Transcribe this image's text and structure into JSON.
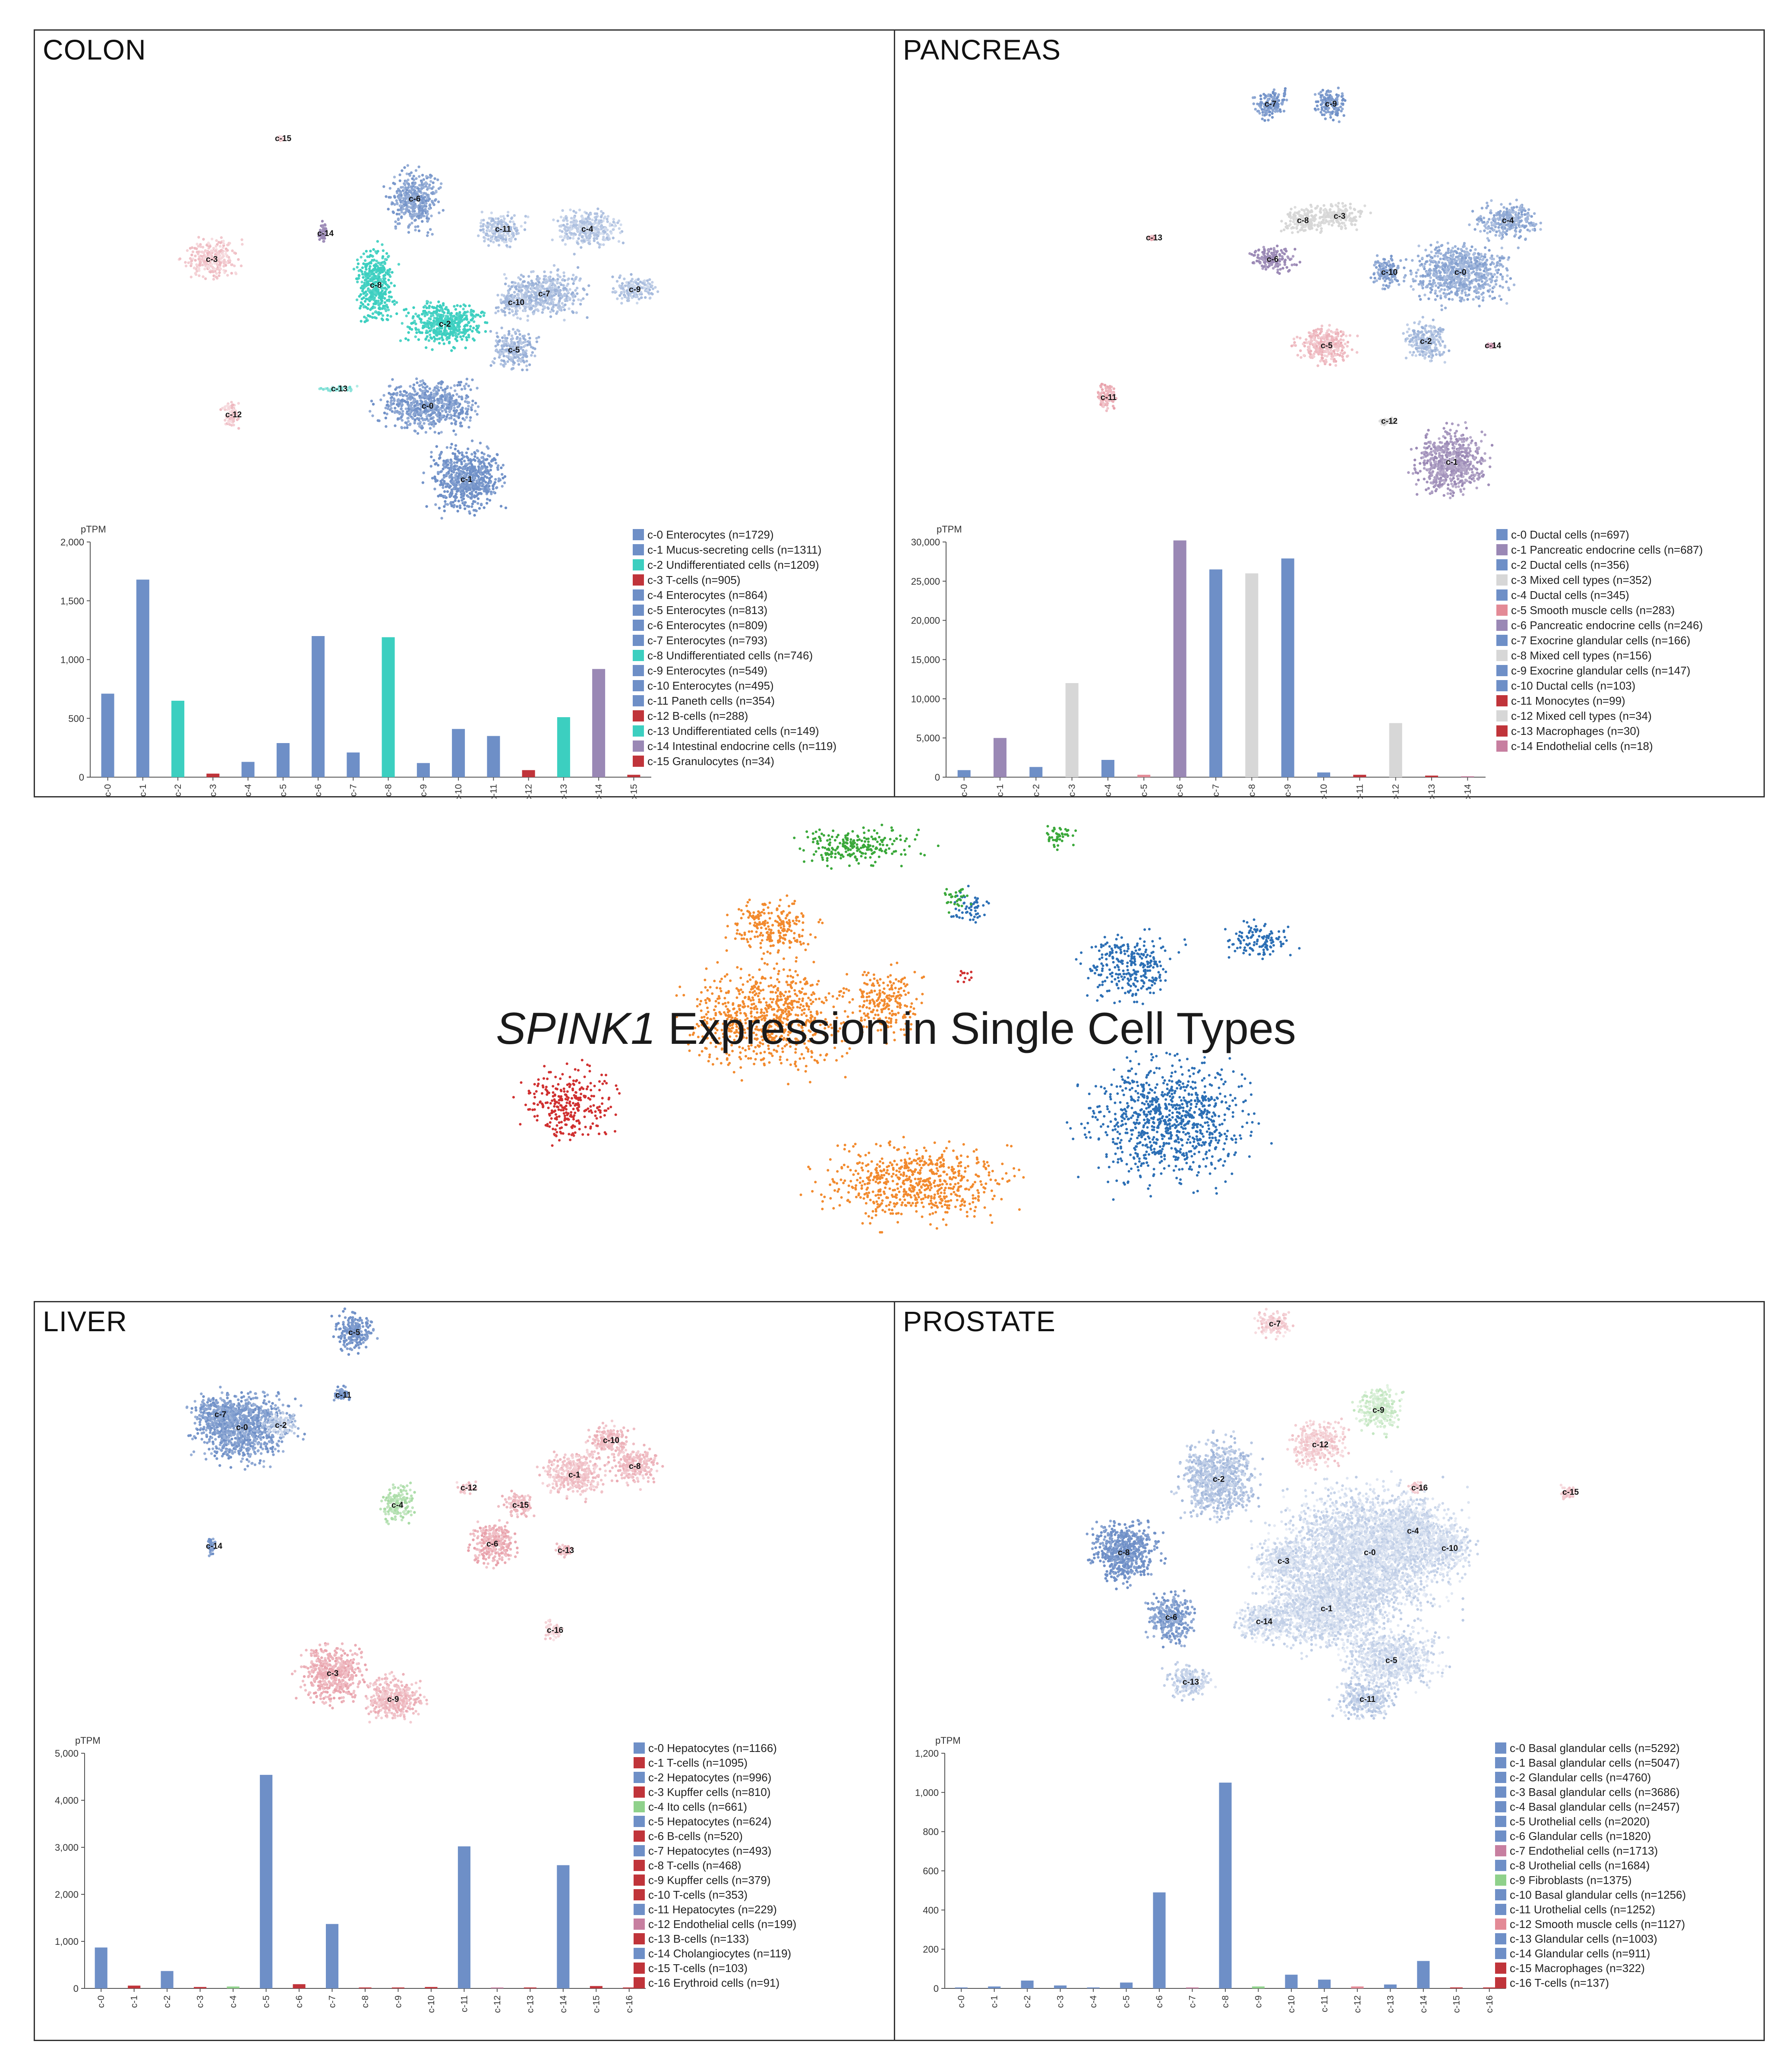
{
  "header": {
    "gene": "SPINK1",
    "title_suffix": "Expression in Single Cell Types"
  },
  "colors": {
    "blue": "#6e8fc7",
    "teal": "#3ccfc0",
    "red": "#c0343a",
    "purple": "#9a88b5",
    "grey": "#d7d7d7",
    "pink": "#e38a96",
    "mauve": "#c77fa0",
    "green": "#8fd18b",
    "center_orange": "#f28a2e",
    "center_blue": "#2c6fb5",
    "center_green": "#3aa83a",
    "center_red": "#d03030"
  },
  "chart_data": [
    {
      "panel": "COLON",
      "type": "bar",
      "ylabel": "pTPM",
      "ylim": [
        0,
        2000
      ],
      "yticks": [
        "0",
        "500",
        "1,000",
        "1,500",
        "2,000"
      ],
      "ytick_values": [
        0,
        500,
        1000,
        1500,
        2000
      ],
      "categories": [
        "c-0",
        "c-1",
        "c-2",
        "c-3",
        "c-4",
        "c-5",
        "c-6",
        "c-7",
        "c-8",
        "c-9",
        "c-10",
        "c-11",
        "c-12",
        "c-13",
        "c-14",
        "c-15"
      ],
      "values": [
        710,
        1680,
        650,
        30,
        130,
        290,
        1200,
        210,
        1190,
        120,
        410,
        350,
        60,
        510,
        920,
        20
      ],
      "bar_colors": [
        "blue",
        "blue",
        "teal",
        "red",
        "blue",
        "blue",
        "blue",
        "blue",
        "teal",
        "blue",
        "blue",
        "blue",
        "red",
        "teal",
        "purple",
        "red"
      ],
      "legend": [
        {
          "label": "c-0 Enterocytes (n=1729)",
          "color": "blue"
        },
        {
          "label": "c-1 Mucus-secreting cells (n=1311)",
          "color": "blue"
        },
        {
          "label": "c-2 Undifferentiated cells (n=1209)",
          "color": "teal"
        },
        {
          "label": "c-3 T-cells (n=905)",
          "color": "red"
        },
        {
          "label": "c-4 Enterocytes (n=864)",
          "color": "blue"
        },
        {
          "label": "c-5 Enterocytes (n=813)",
          "color": "blue"
        },
        {
          "label": "c-6 Enterocytes (n=809)",
          "color": "blue"
        },
        {
          "label": "c-7 Enterocytes (n=793)",
          "color": "blue"
        },
        {
          "label": "c-8 Undifferentiated cells (n=746)",
          "color": "teal"
        },
        {
          "label": "c-9 Enterocytes (n=549)",
          "color": "blue"
        },
        {
          "label": "c-10 Enterocytes (n=495)",
          "color": "blue"
        },
        {
          "label": "c-11 Paneth cells (n=354)",
          "color": "blue"
        },
        {
          "label": "c-12 B-cells (n=288)",
          "color": "red"
        },
        {
          "label": "c-13 Undifferentiated cells (n=149)",
          "color": "teal"
        },
        {
          "label": "c-14 Intestinal endocrine cells (n=119)",
          "color": "purple"
        },
        {
          "label": "c-15 Granulocytes (n=34)",
          "color": "red"
        }
      ],
      "umap_clusters": [
        {
          "label": "c-0",
          "color": "blue"
        },
        {
          "label": "c-1",
          "color": "blue"
        },
        {
          "label": "c-2",
          "color": "teal"
        },
        {
          "label": "c-3",
          "color": "pink"
        },
        {
          "label": "c-4",
          "color": "blue"
        },
        {
          "label": "c-5",
          "color": "blue"
        },
        {
          "label": "c-6",
          "color": "blue"
        },
        {
          "label": "c-7",
          "color": "blue"
        },
        {
          "label": "c-8",
          "color": "teal"
        },
        {
          "label": "c-9",
          "color": "blue"
        },
        {
          "label": "c-10",
          "color": "blue"
        },
        {
          "label": "c-11",
          "color": "blue"
        },
        {
          "label": "c-12",
          "color": "pink"
        },
        {
          "label": "c-13",
          "color": "teal"
        },
        {
          "label": "c-14",
          "color": "purple"
        },
        {
          "label": "c-15",
          "color": "pink"
        }
      ]
    },
    {
      "panel": "PANCREAS",
      "type": "bar",
      "ylabel": "pTPM",
      "ylim": [
        0,
        30000
      ],
      "yticks": [
        "0",
        "5,000",
        "10,000",
        "15,000",
        "20,000",
        "25,000",
        "30,000"
      ],
      "ytick_values": [
        0,
        5000,
        10000,
        15000,
        20000,
        25000,
        30000
      ],
      "categories": [
        "c-0",
        "c-1",
        "c-2",
        "c-3",
        "c-4",
        "c-5",
        "c-6",
        "c-7",
        "c-8",
        "c-9",
        "c-10",
        "c-11",
        "c-12",
        "c-13",
        "c-14"
      ],
      "values": [
        900,
        5000,
        1300,
        12000,
        2200,
        300,
        30200,
        26500,
        26000,
        27900,
        600,
        300,
        6900,
        200,
        100
      ],
      "bar_colors": [
        "blue",
        "purple",
        "blue",
        "grey",
        "blue",
        "pink",
        "purple",
        "blue",
        "grey",
        "blue",
        "blue",
        "red",
        "grey",
        "red",
        "mauve"
      ],
      "legend": [
        {
          "label": "c-0 Ductal cells (n=697)",
          "color": "blue"
        },
        {
          "label": "c-1 Pancreatic endocrine cells (n=687)",
          "color": "purple"
        },
        {
          "label": "c-2 Ductal cells (n=356)",
          "color": "blue"
        },
        {
          "label": "c-3 Mixed cell types (n=352)",
          "color": "grey"
        },
        {
          "label": "c-4 Ductal cells (n=345)",
          "color": "blue"
        },
        {
          "label": "c-5 Smooth muscle cells (n=283)",
          "color": "pink"
        },
        {
          "label": "c-6 Pancreatic endocrine cells (n=246)",
          "color": "purple"
        },
        {
          "label": "c-7 Exocrine glandular cells (n=166)",
          "color": "blue"
        },
        {
          "label": "c-8 Mixed cell types (n=156)",
          "color": "grey"
        },
        {
          "label": "c-9 Exocrine glandular cells (n=147)",
          "color": "blue"
        },
        {
          "label": "c-10 Ductal cells (n=103)",
          "color": "blue"
        },
        {
          "label": "c-11 Monocytes (n=99)",
          "color": "red"
        },
        {
          "label": "c-12 Mixed cell types (n=34)",
          "color": "grey"
        },
        {
          "label": "c-13 Macrophages (n=30)",
          "color": "red"
        },
        {
          "label": "c-14 Endothelial cells (n=18)",
          "color": "mauve"
        }
      ],
      "umap_clusters": [
        {
          "label": "c-0",
          "color": "blue"
        },
        {
          "label": "c-1",
          "color": "purple"
        },
        {
          "label": "c-2",
          "color": "blue"
        },
        {
          "label": "c-3",
          "color": "grey"
        },
        {
          "label": "c-4",
          "color": "blue"
        },
        {
          "label": "c-5",
          "color": "pink"
        },
        {
          "label": "c-6",
          "color": "purple"
        },
        {
          "label": "c-7",
          "color": "blue"
        },
        {
          "label": "c-8",
          "color": "grey"
        },
        {
          "label": "c-9",
          "color": "blue"
        },
        {
          "label": "c-10",
          "color": "blue"
        },
        {
          "label": "c-11",
          "color": "pink"
        },
        {
          "label": "c-12",
          "color": "grey"
        },
        {
          "label": "c-13",
          "color": "pink"
        },
        {
          "label": "c-14",
          "color": "mauve"
        }
      ]
    },
    {
      "panel": "LIVER",
      "type": "bar",
      "ylabel": "pTPM",
      "ylim": [
        0,
        5000
      ],
      "yticks": [
        "0",
        "1,000",
        "2,000",
        "3,000",
        "4,000",
        "5,000"
      ],
      "ytick_values": [
        0,
        1000,
        2000,
        3000,
        4000,
        5000
      ],
      "categories": [
        "c-0",
        "c-1",
        "c-2",
        "c-3",
        "c-4",
        "c-5",
        "c-6",
        "c-7",
        "c-8",
        "c-9",
        "c-10",
        "c-11",
        "c-12",
        "c-13",
        "c-14",
        "c-15",
        "c-16"
      ],
      "values": [
        870,
        60,
        370,
        30,
        40,
        4540,
        90,
        1370,
        20,
        20,
        30,
        3020,
        20,
        20,
        2620,
        50,
        20
      ],
      "bar_colors": [
        "blue",
        "red",
        "blue",
        "red",
        "green",
        "blue",
        "red",
        "blue",
        "red",
        "red",
        "red",
        "blue",
        "mauve",
        "red",
        "blue",
        "red",
        "red"
      ],
      "legend": [
        {
          "label": "c-0 Hepatocytes (n=1166)",
          "color": "blue"
        },
        {
          "label": "c-1 T-cells (n=1095)",
          "color": "red"
        },
        {
          "label": "c-2 Hepatocytes (n=996)",
          "color": "blue"
        },
        {
          "label": "c-3 Kupffer cells (n=810)",
          "color": "red"
        },
        {
          "label": "c-4 Ito cells (n=661)",
          "color": "green"
        },
        {
          "label": "c-5 Hepatocytes (n=624)",
          "color": "blue"
        },
        {
          "label": "c-6 B-cells (n=520)",
          "color": "red"
        },
        {
          "label": "c-7 Hepatocytes (n=493)",
          "color": "blue"
        },
        {
          "label": "c-8 T-cells (n=468)",
          "color": "red"
        },
        {
          "label": "c-9 Kupffer cells (n=379)",
          "color": "red"
        },
        {
          "label": "c-10 T-cells (n=353)",
          "color": "red"
        },
        {
          "label": "c-11 Hepatocytes (n=229)",
          "color": "blue"
        },
        {
          "label": "c-12 Endothelial cells (n=199)",
          "color": "mauve"
        },
        {
          "label": "c-13 B-cells (n=133)",
          "color": "red"
        },
        {
          "label": "c-14 Cholangiocytes (n=119)",
          "color": "blue"
        },
        {
          "label": "c-15 T-cells (n=103)",
          "color": "red"
        },
        {
          "label": "c-16 Erythroid cells (n=91)",
          "color": "red"
        }
      ],
      "umap_clusters": [
        {
          "label": "c-0",
          "color": "blue"
        },
        {
          "label": "c-1",
          "color": "pink"
        },
        {
          "label": "c-2",
          "color": "blue"
        },
        {
          "label": "c-3",
          "color": "pink"
        },
        {
          "label": "c-4",
          "color": "green"
        },
        {
          "label": "c-5",
          "color": "blue"
        },
        {
          "label": "c-6",
          "color": "pink"
        },
        {
          "label": "c-7",
          "color": "blue"
        },
        {
          "label": "c-8",
          "color": "pink"
        },
        {
          "label": "c-9",
          "color": "pink"
        },
        {
          "label": "c-10",
          "color": "pink"
        },
        {
          "label": "c-11",
          "color": "blue"
        },
        {
          "label": "c-12",
          "color": "pink"
        },
        {
          "label": "c-13",
          "color": "pink"
        },
        {
          "label": "c-14",
          "color": "blue"
        },
        {
          "label": "c-15",
          "color": "pink"
        },
        {
          "label": "c-16",
          "color": "pink"
        }
      ]
    },
    {
      "panel": "PROSTATE",
      "type": "bar",
      "ylabel": "pTPM",
      "ylim": [
        0,
        1200
      ],
      "yticks": [
        "0",
        "200",
        "400",
        "600",
        "800",
        "1,000",
        "1,200"
      ],
      "ytick_values": [
        0,
        200,
        400,
        600,
        800,
        1000,
        1200
      ],
      "categories": [
        "c-0",
        "c-1",
        "c-2",
        "c-3",
        "c-4",
        "c-5",
        "c-6",
        "c-7",
        "c-8",
        "c-9",
        "c-10",
        "c-11",
        "c-12",
        "c-13",
        "c-14",
        "c-15",
        "c-16"
      ],
      "values": [
        5,
        10,
        40,
        15,
        5,
        30,
        490,
        5,
        1050,
        10,
        70,
        45,
        10,
        20,
        140,
        5,
        5
      ],
      "bar_colors": [
        "blue",
        "blue",
        "blue",
        "blue",
        "blue",
        "blue",
        "blue",
        "mauve",
        "blue",
        "green",
        "blue",
        "blue",
        "pink",
        "blue",
        "blue",
        "red",
        "red"
      ],
      "legend": [
        {
          "label": "c-0 Basal glandular cells (n=5292)",
          "color": "blue"
        },
        {
          "label": "c-1 Basal glandular cells (n=5047)",
          "color": "blue"
        },
        {
          "label": "c-2 Glandular cells (n=4760)",
          "color": "blue"
        },
        {
          "label": "c-3 Basal glandular cells (n=3686)",
          "color": "blue"
        },
        {
          "label": "c-4 Basal glandular cells (n=2457)",
          "color": "blue"
        },
        {
          "label": "c-5 Urothelial cells (n=2020)",
          "color": "blue"
        },
        {
          "label": "c-6 Glandular cells (n=1820)",
          "color": "blue"
        },
        {
          "label": "c-7 Endothelial cells (n=1713)",
          "color": "mauve"
        },
        {
          "label": "c-8 Urothelial cells (n=1684)",
          "color": "blue"
        },
        {
          "label": "c-9 Fibroblasts (n=1375)",
          "color": "green"
        },
        {
          "label": "c-10 Basal glandular cells (n=1256)",
          "color": "blue"
        },
        {
          "label": "c-11 Urothelial cells (n=1252)",
          "color": "blue"
        },
        {
          "label": "c-12 Smooth muscle cells (n=1127)",
          "color": "pink"
        },
        {
          "label": "c-13 Glandular cells (n=1003)",
          "color": "blue"
        },
        {
          "label": "c-14 Glandular cells (n=911)",
          "color": "blue"
        },
        {
          "label": "c-15 Macrophages (n=322)",
          "color": "red"
        },
        {
          "label": "c-16 T-cells (n=137)",
          "color": "red"
        }
      ],
      "umap_clusters": [
        {
          "label": "c-0",
          "color": "blue"
        },
        {
          "label": "c-1",
          "color": "blue"
        },
        {
          "label": "c-2",
          "color": "blue"
        },
        {
          "label": "c-3",
          "color": "blue"
        },
        {
          "label": "c-4",
          "color": "blue"
        },
        {
          "label": "c-5",
          "color": "blue"
        },
        {
          "label": "c-6",
          "color": "blue"
        },
        {
          "label": "c-7",
          "color": "pink"
        },
        {
          "label": "c-8",
          "color": "blue"
        },
        {
          "label": "c-9",
          "color": "green"
        },
        {
          "label": "c-10",
          "color": "blue"
        },
        {
          "label": "c-11",
          "color": "blue"
        },
        {
          "label": "c-12",
          "color": "pink"
        },
        {
          "label": "c-13",
          "color": "blue"
        },
        {
          "label": "c-14",
          "color": "blue"
        },
        {
          "label": "c-15",
          "color": "pink"
        },
        {
          "label": "c-16",
          "color": "pink"
        }
      ]
    }
  ]
}
